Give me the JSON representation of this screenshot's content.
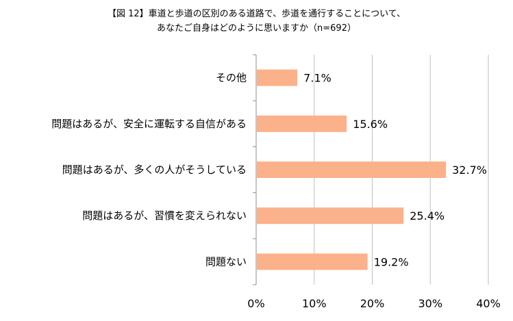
{
  "title_lines": [
    "【図 12】車道と歩道の区別のある道路で、歩道を通行することについて、",
    "あなたご自身はどのように思いますか（n=692）"
  ],
  "chart_data": {
    "type": "bar",
    "orientation": "horizontal",
    "categories": [
      "その他",
      "問題はあるが、安全に運転する自信がある",
      "問題はあるが、多くの人がそうしている",
      "問題はあるが、習慣を変えられない",
      "問題ない"
    ],
    "values": [
      7.1,
      15.6,
      32.7,
      25.4,
      19.2
    ],
    "value_labels": [
      "7.1%",
      "15.6%",
      "32.7%",
      "25.4%",
      "19.2%"
    ],
    "xlim": [
      0,
      40
    ],
    "xticks": [
      0,
      10,
      20,
      30,
      40
    ],
    "xtick_labels": [
      "0%",
      "10%",
      "20%",
      "30%",
      "40%"
    ],
    "xlabel": "",
    "ylabel": "",
    "grid": true,
    "legend": false,
    "bar_color": "#FBB18A",
    "grid_color": "#BFBFBF",
    "axis_color": "#8C8C8C"
  }
}
